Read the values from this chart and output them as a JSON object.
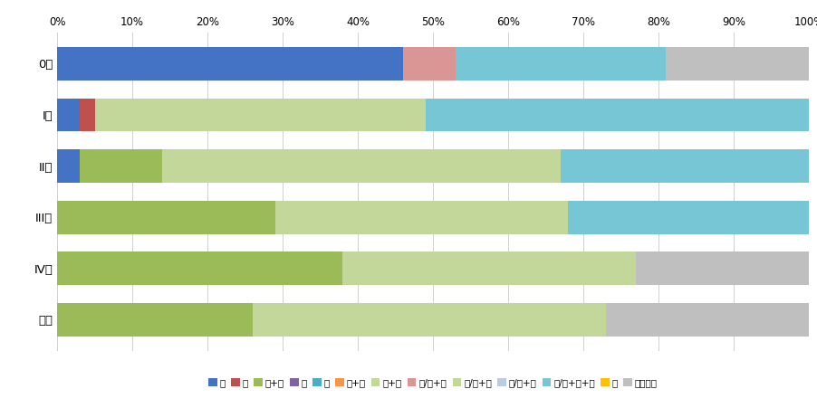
{
  "categories": [
    "0期",
    "I期",
    "II期",
    "III期",
    "IV期",
    "不明"
  ],
  "legend_labels": [
    "手",
    "内",
    "手+内",
    "放",
    "薬",
    "放+薬",
    "薬+他",
    "手/内+放",
    "手/内+薬",
    "手/内+他",
    "手/内+放+薬",
    "他",
    "治療なし"
  ],
  "colors": [
    "#4472C4",
    "#C0504D",
    "#9BBB59",
    "#8064A2",
    "#4BACC6",
    "#F79646",
    "#C4D79B",
    "#DA9694",
    "#C4D79B",
    "#B8CCE4",
    "#76C6D5",
    "#FFC000",
    "#BFBFBF"
  ],
  "legend_colors": [
    "#4472C4",
    "#C0504D",
    "#9BBB59",
    "#8064A2",
    "#4BACC6",
    "#F79646",
    "#C4D79B",
    "#DA9694",
    "#C4D79B",
    "#B8CCE4",
    "#76C6D5",
    "#FFC000",
    "#BFBFBF"
  ],
  "data_rows": [
    [
      46,
      0,
      0,
      0,
      0,
      0,
      0,
      7,
      0,
      0,
      28,
      0,
      19
    ],
    [
      3,
      2,
      0,
      0,
      0,
      0,
      0,
      0,
      44,
      0,
      51,
      0,
      0
    ],
    [
      3,
      0,
      11,
      0,
      0,
      0,
      0,
      0,
      53,
      0,
      33,
      0,
      0
    ],
    [
      0,
      0,
      29,
      0,
      0,
      0,
      0,
      0,
      39,
      0,
      32,
      0,
      0
    ],
    [
      0,
      0,
      38,
      0,
      0,
      0,
      0,
      0,
      39,
      0,
      0,
      0,
      23
    ],
    [
      0,
      0,
      26,
      0,
      0,
      0,
      0,
      0,
      47,
      0,
      0,
      0,
      27
    ]
  ],
  "background_color": "#FFFFFF",
  "bar_height": 0.65,
  "xlim": [
    0,
    100
  ],
  "xticks": [
    0,
    10,
    20,
    30,
    40,
    50,
    60,
    70,
    80,
    90,
    100
  ],
  "xtick_labels": [
    "0%",
    "10%",
    "20%",
    "30%",
    "40%",
    "50%",
    "60%",
    "70%",
    "80%",
    "90%",
    "100%"
  ],
  "figsize": [
    9.02,
    4.51
  ],
  "dpi": 100
}
